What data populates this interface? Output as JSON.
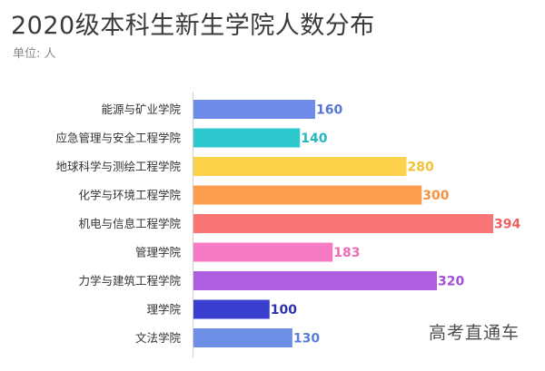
{
  "title": "2020级本科生新生学院人数分布",
  "subtitle": "单位: 人",
  "watermark": "高考直通车",
  "chart_data": {
    "type": "bar",
    "orientation": "horizontal",
    "title": "2020级本科生新生学院人数分布",
    "unit": "单位: 人",
    "categories": [
      "能源与矿业学院",
      "应急管理与安全工程学院",
      "地球科学与测绘工程学院",
      "化学与环境工程学院",
      "机电与信息工程学院",
      "管理学院",
      "力学与建筑工程学院",
      "理学院",
      "文法学院"
    ],
    "values": [
      160,
      140,
      280,
      300,
      394,
      183,
      320,
      100,
      130
    ],
    "colors": [
      "#6f8be8",
      "#2ec9cf",
      "#fbd24a",
      "#fc9d4d",
      "#f97474",
      "#f77bc4",
      "#b05ee0",
      "#3a3fcf",
      "#6d8fe6"
    ],
    "label_colors": [
      "#5575d8",
      "#25b7bd",
      "#f2c230",
      "#f59240",
      "#ee6060",
      "#ee6cb8",
      "#a14fd6",
      "#2d31b0",
      "#5a7ed8"
    ],
    "xlim": [
      0,
      394
    ],
    "grid": false,
    "legend": "none"
  }
}
